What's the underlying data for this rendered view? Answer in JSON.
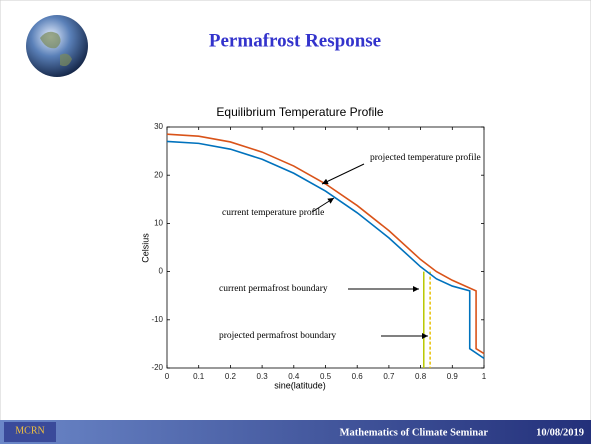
{
  "slide": {
    "title": "Permafrost Response",
    "footer": "Mathematics of Climate Seminar",
    "date": "10/08/2019",
    "logo": "MCRN"
  },
  "chart_data": {
    "type": "line",
    "title": "Equilibrium Temperature Profile",
    "x_label": "sine(latitude)",
    "y_label": "Celsius",
    "xlim": [
      0,
      1
    ],
    "ylim": [
      -20,
      30
    ],
    "xticks": [
      0,
      0.1,
      0.2,
      0.3,
      0.4,
      0.5,
      0.6,
      0.7,
      0.8,
      0.9,
      1
    ],
    "yticks": [
      -20,
      -10,
      0,
      10,
      20,
      30
    ],
    "series": [
      {
        "name": "current temperature profile",
        "color": "#0072bd",
        "x": [
          0,
          0.1,
          0.2,
          0.3,
          0.4,
          0.5,
          0.6,
          0.7,
          0.8,
          0.85,
          0.9,
          0.955,
          0.955,
          1
        ],
        "values": [
          27,
          26.6,
          25.4,
          23.3,
          20.4,
          16.7,
          12.2,
          7,
          1,
          -1.5,
          -3,
          -4,
          -16,
          -18
        ]
      },
      {
        "name": "projected temperature profile",
        "color": "#d95319",
        "x": [
          0,
          0.1,
          0.2,
          0.3,
          0.4,
          0.5,
          0.6,
          0.7,
          0.8,
          0.85,
          0.9,
          0.975,
          0.975,
          1
        ],
        "values": [
          28.5,
          28.1,
          26.9,
          24.8,
          21.9,
          18.2,
          13.7,
          8.5,
          2.5,
          0,
          -1.8,
          -4,
          -16,
          -17
        ]
      }
    ],
    "boundaries": [
      {
        "name": "current permafrost boundary",
        "value": 0.81,
        "color": "#b8c800",
        "dashed": false
      },
      {
        "name": "projected permafrost boundary",
        "value": 0.83,
        "color": "#e8c000",
        "dashed": true
      }
    ]
  }
}
